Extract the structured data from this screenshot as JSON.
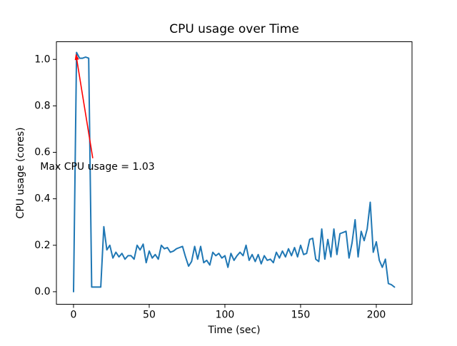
{
  "chart_data": {
    "type": "line",
    "title": "CPU usage over Time",
    "xlabel": "Time (sec)",
    "ylabel": "CPU usage (cores)",
    "xlim": [
      -11.3,
      223.6
    ],
    "ylim": [
      -0.054,
      1.076
    ],
    "xticks": [
      [
        0,
        "0"
      ],
      [
        50,
        "50"
      ],
      [
        100,
        "100"
      ],
      [
        150,
        "150"
      ],
      [
        200,
        "200"
      ]
    ],
    "yticks": [
      [
        0,
        "0.0"
      ],
      [
        0.2,
        "0.2"
      ],
      [
        0.4,
        "0.4"
      ],
      [
        0.6,
        "0.6"
      ],
      [
        0.8,
        "0.8"
      ],
      [
        1,
        "1.0"
      ]
    ],
    "grid": false,
    "legend_position": "none",
    "line_color": "#1f77b4",
    "series": [
      {
        "name": "cpu-usage",
        "x": [
          0,
          2,
          4,
          6,
          8,
          10,
          12,
          14,
          16,
          18,
          20,
          22,
          24,
          26,
          28,
          30,
          32,
          34,
          36,
          38,
          40,
          42,
          44,
          46,
          48,
          50,
          52,
          54,
          56,
          58,
          60,
          62,
          64,
          66,
          68,
          70,
          72,
          74,
          76,
          78,
          80,
          82,
          84,
          86,
          88,
          90,
          92,
          94,
          96,
          98,
          100,
          102,
          104,
          106,
          108,
          110,
          112,
          114,
          116,
          118,
          120,
          122,
          124,
          126,
          128,
          130,
          132,
          134,
          136,
          138,
          140,
          142,
          144,
          146,
          148,
          150,
          152,
          154,
          156,
          158,
          160,
          162,
          164,
          166,
          168,
          170,
          172,
          174,
          176,
          178,
          180,
          182,
          184,
          186,
          188,
          190,
          192,
          194,
          196,
          198,
          200,
          202,
          204,
          206,
          208,
          210,
          212
        ],
        "y": [
          0.0,
          1.03,
          1.005,
          1.005,
          1.01,
          1.005,
          0.02,
          0.02,
          0.02,
          0.02,
          0.28,
          0.18,
          0.2,
          0.145,
          0.17,
          0.15,
          0.165,
          0.14,
          0.155,
          0.155,
          0.14,
          0.2,
          0.18,
          0.205,
          0.125,
          0.175,
          0.145,
          0.16,
          0.14,
          0.2,
          0.185,
          0.19,
          0.17,
          0.175,
          0.185,
          0.19,
          0.195,
          0.15,
          0.11,
          0.13,
          0.195,
          0.14,
          0.195,
          0.125,
          0.135,
          0.115,
          0.17,
          0.155,
          0.165,
          0.145,
          0.155,
          0.105,
          0.165,
          0.135,
          0.155,
          0.17,
          0.155,
          0.2,
          0.135,
          0.16,
          0.13,
          0.16,
          0.12,
          0.155,
          0.135,
          0.14,
          0.125,
          0.17,
          0.145,
          0.175,
          0.15,
          0.185,
          0.155,
          0.19,
          0.15,
          0.2,
          0.16,
          0.165,
          0.225,
          0.23,
          0.14,
          0.13,
          0.27,
          0.14,
          0.225,
          0.15,
          0.27,
          0.16,
          0.25,
          0.255,
          0.26,
          0.145,
          0.21,
          0.31,
          0.15,
          0.26,
          0.22,
          0.27,
          0.385,
          0.17,
          0.215,
          0.135,
          0.105,
          0.14,
          0.035,
          0.03,
          0.02
        ]
      }
    ],
    "annotation": {
      "text": "Max CPU usage = 1.03",
      "color": "#ff0000",
      "xy": [
        2,
        1.03
      ],
      "text_pos": [
        -22,
        0.525
      ],
      "arrow_tail": [
        12.7,
        0.575
      ]
    }
  }
}
